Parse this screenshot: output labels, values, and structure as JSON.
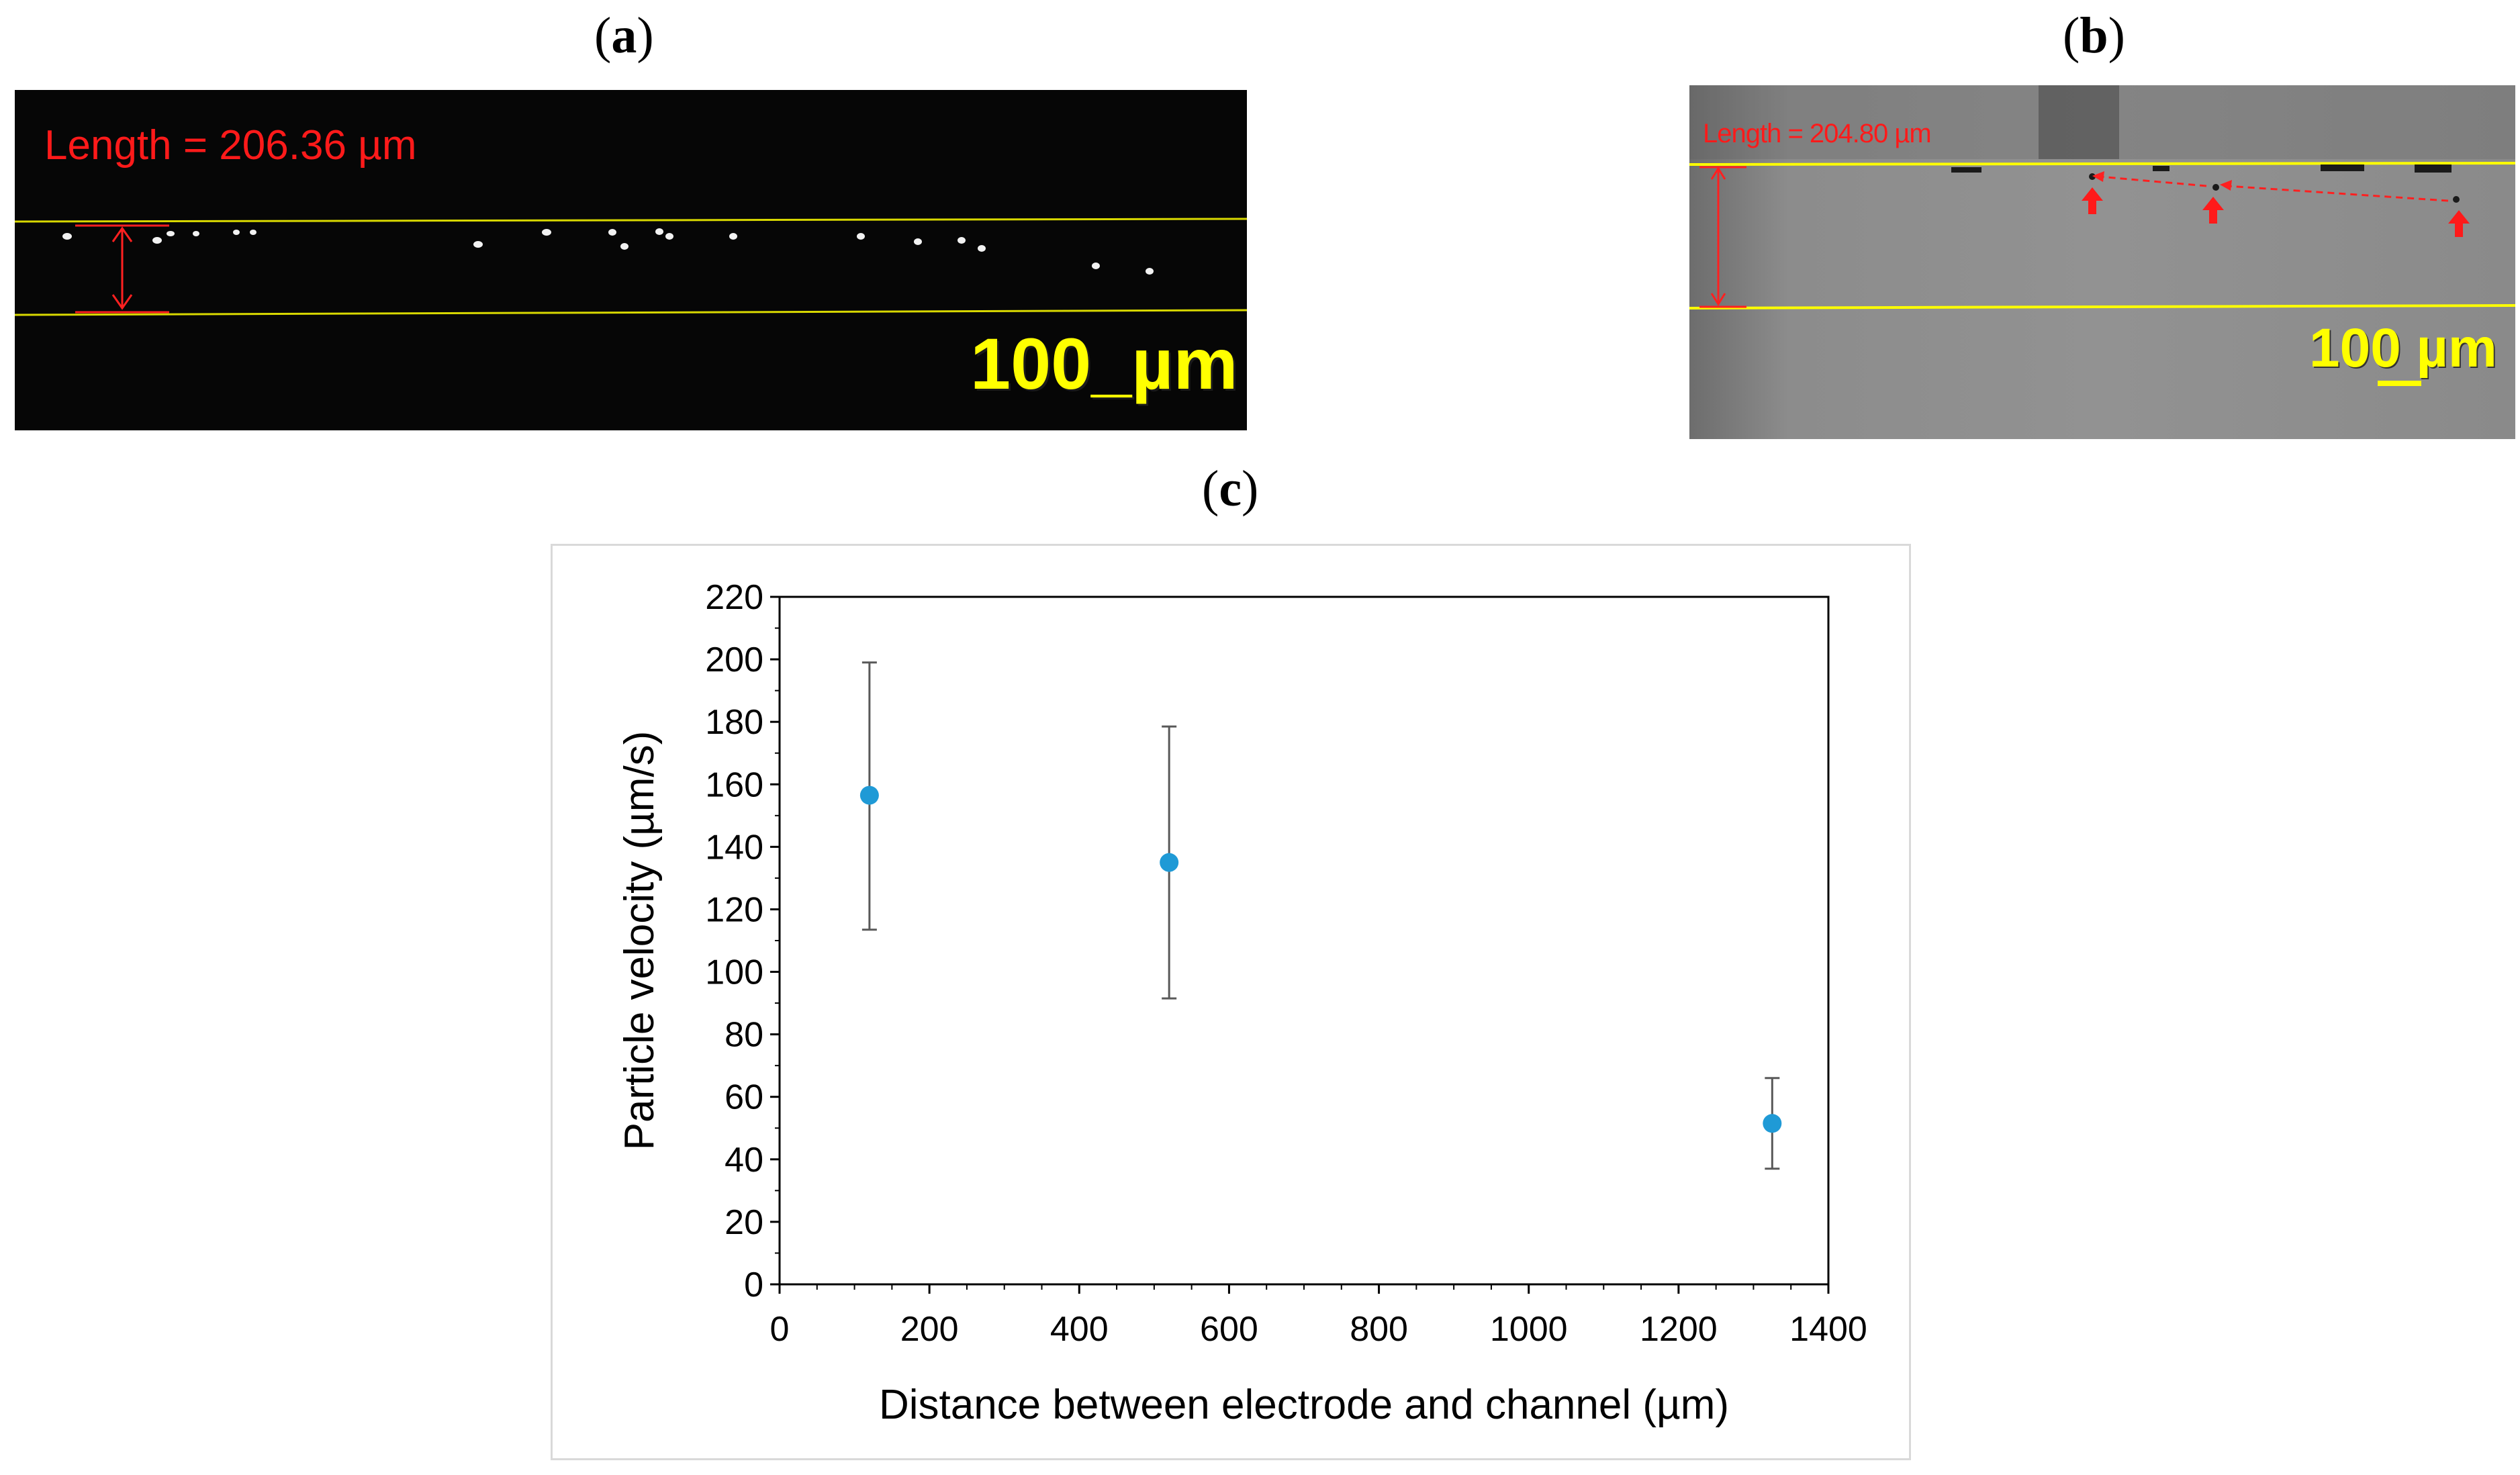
{
  "panels": {
    "a": {
      "label": "a",
      "length_text": "Length = 206.36 µm",
      "scale_text": "100_µm"
    },
    "b": {
      "label": "b",
      "length_text": "Length = 204.80 µm",
      "scale_text": "100 µm"
    },
    "c": {
      "label": "c"
    }
  },
  "colors": {
    "point": "#1f9ad6",
    "errorbar": "#595959",
    "measure": "#ff1a1a",
    "channel_line": "#ffff00"
  },
  "chart_data": {
    "type": "scatter",
    "title": "",
    "xlabel": "Distance between electrode and channel (µm)",
    "ylabel": "Particle velocity (µm/s)",
    "xlim": [
      0,
      1400
    ],
    "ylim": [
      0,
      220
    ],
    "x_ticks": [
      0,
      200,
      400,
      600,
      800,
      1000,
      1200,
      1400
    ],
    "y_ticks": [
      0,
      20,
      40,
      60,
      80,
      100,
      120,
      140,
      160,
      180,
      200,
      220
    ],
    "grid": false,
    "legend": "none",
    "series": [
      {
        "points": [
          {
            "x": 120,
            "y": 156.5,
            "err_low": 113.5,
            "err_high": 199
          },
          {
            "x": 520,
            "y": 135,
            "err_low": 91.5,
            "err_high": 178.5
          },
          {
            "x": 1325,
            "y": 51.5,
            "err_low": 37,
            "err_high": 66
          }
        ]
      }
    ]
  }
}
